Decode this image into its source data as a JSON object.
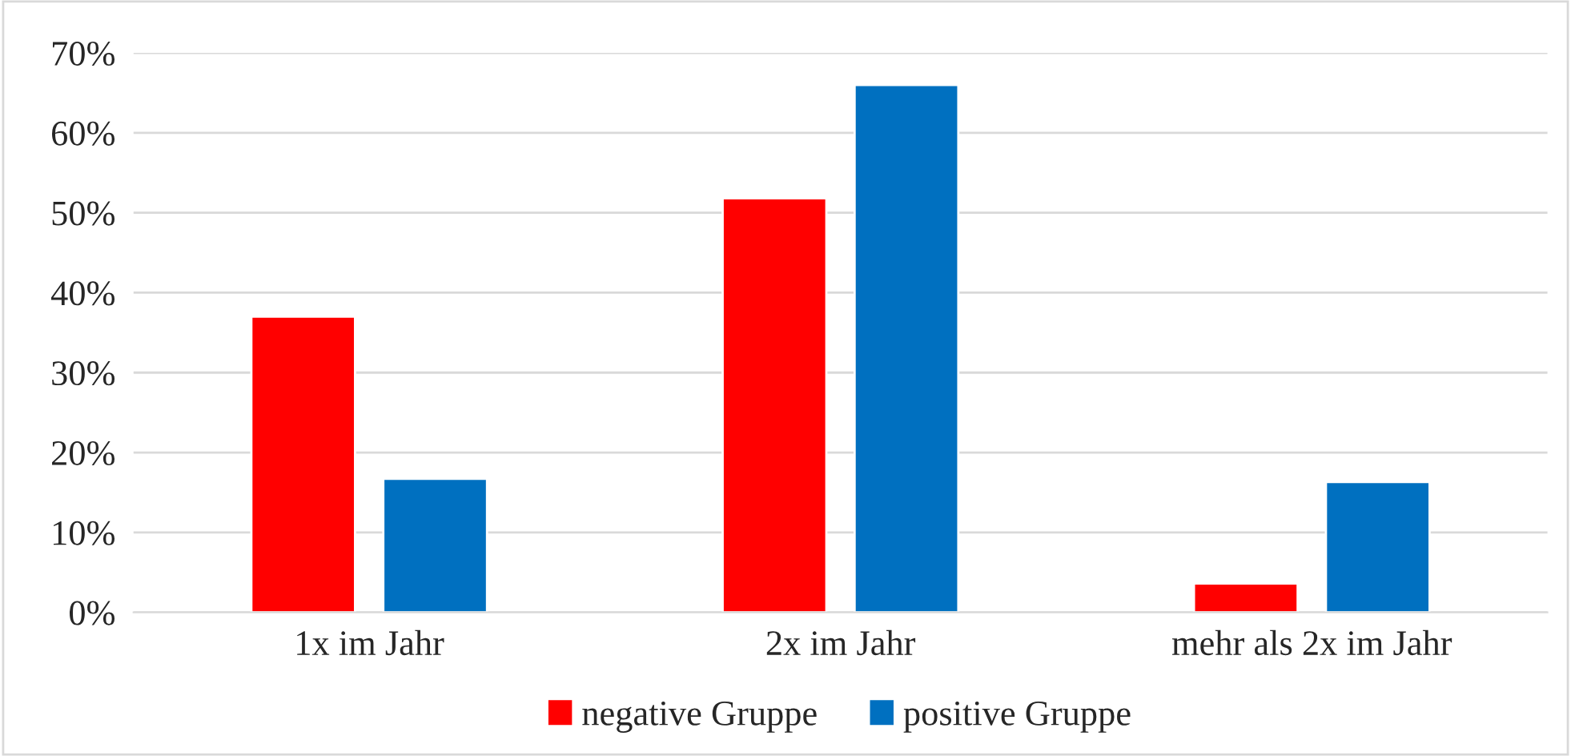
{
  "chart_data": {
    "type": "bar",
    "categories": [
      "1x im Jahr",
      "2x im Jahr",
      "mehr als 2x im Jahr"
    ],
    "series": [
      {
        "name": "negative Gruppe",
        "color": "#ff0000",
        "values": [
          37,
          51.8,
          3.6
        ]
      },
      {
        "name": "positive Gruppe",
        "color": "#0070c0",
        "values": [
          16.7,
          66,
          16.3
        ]
      }
    ],
    "ylim": [
      0,
      70
    ],
    "yticks": [
      {
        "value": 0,
        "label": "0%"
      },
      {
        "value": 10,
        "label": "10%"
      },
      {
        "value": 20,
        "label": "20%"
      },
      {
        "value": 30,
        "label": "30%"
      },
      {
        "value": 40,
        "label": "40%"
      },
      {
        "value": 50,
        "label": "50%"
      },
      {
        "value": 60,
        "label": "60%"
      },
      {
        "value": 70,
        "label": "70%"
      }
    ],
    "grid": "y",
    "legend": "bottom"
  }
}
